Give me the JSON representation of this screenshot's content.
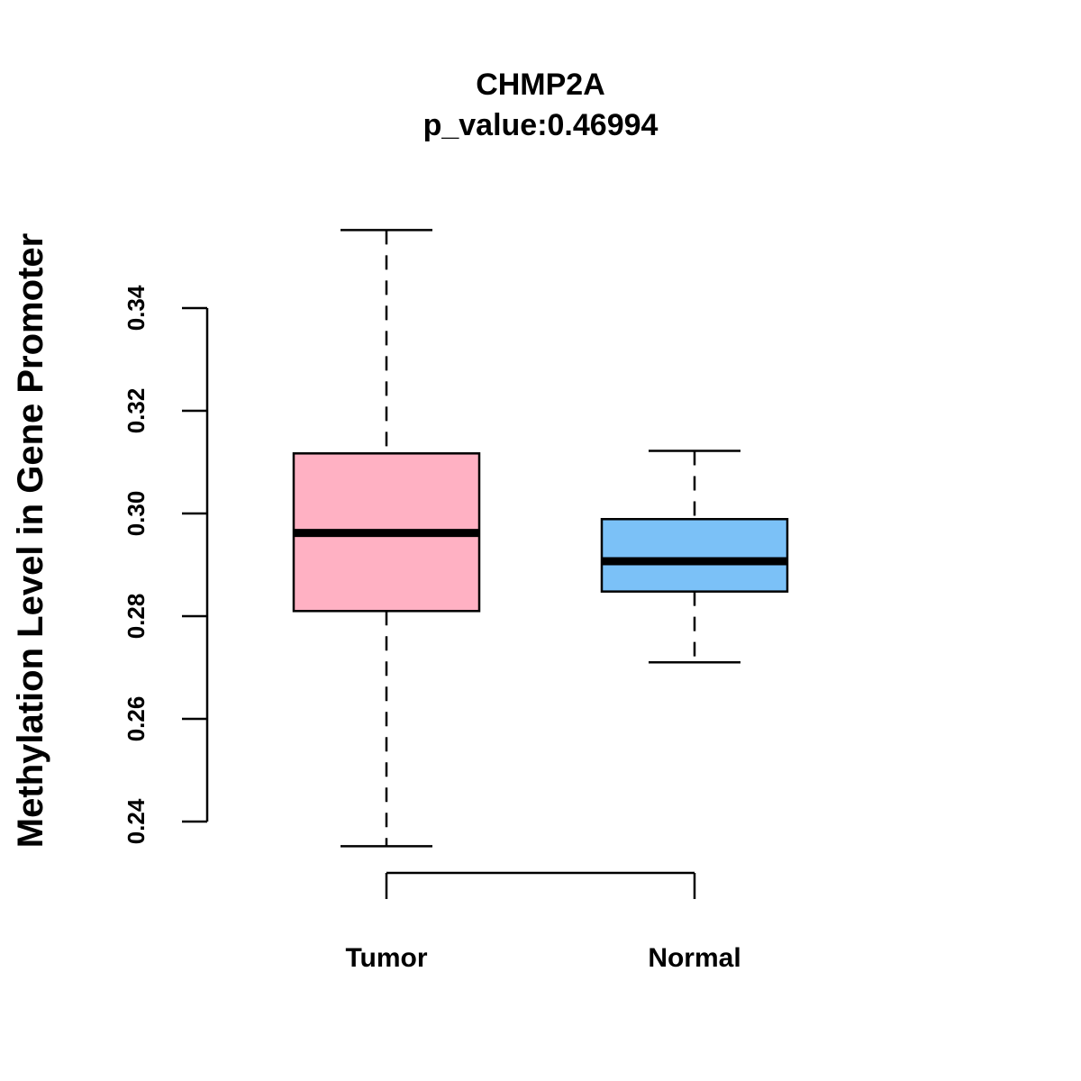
{
  "chart_data": {
    "type": "boxplot",
    "title": "CHMP2A",
    "subtitle": "p_value:0.46994",
    "xlabel": "",
    "ylabel": "Methylation Level in Gene Promoter",
    "ylim": [
      0.24,
      0.34
    ],
    "yticks": [
      0.24,
      0.26,
      0.28,
      0.3,
      0.32,
      0.34
    ],
    "ytick_labels": [
      "0.24",
      "0.26",
      "0.28",
      "0.30",
      "0.32",
      "0.34"
    ],
    "categories": [
      "Tumor",
      "Normal"
    ],
    "series": [
      {
        "name": "Tumor",
        "color": "#FFB1C3",
        "min": 0.2352,
        "q1": 0.281,
        "median": 0.2962,
        "q3": 0.3117,
        "max": 0.3552
      },
      {
        "name": "Normal",
        "color": "#7BC1F7",
        "min": 0.271,
        "q1": 0.2848,
        "median": 0.2907,
        "q3": 0.2989,
        "max": 0.3122
      }
    ]
  }
}
